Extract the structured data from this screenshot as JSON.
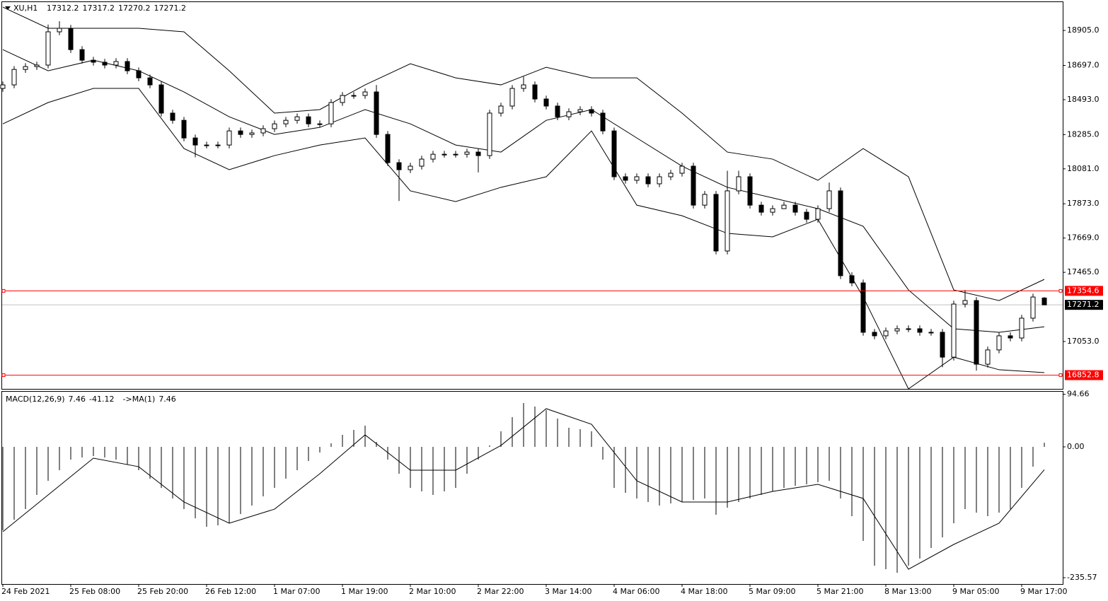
{
  "chart_data": {
    "type": "candlestick",
    "symbol": "XU,H1",
    "categories": [
      "24 Feb 2021",
      null,
      null,
      null,
      null,
      null,
      "25 Feb 08:00",
      null,
      null,
      null,
      null,
      null,
      "25 Feb 20:00",
      null,
      null,
      null,
      null,
      null,
      "26 Feb 12:00",
      null,
      null,
      null,
      null,
      null,
      "1 Mar 07:00",
      null,
      null,
      null,
      null,
      null,
      "1 Mar 19:00",
      null,
      null,
      null,
      null,
      null,
      "2 Mar 10:00",
      null,
      null,
      null,
      null,
      null,
      "2 Mar 22:00",
      null,
      null,
      null,
      null,
      null,
      "3 Mar 14:00",
      null,
      null,
      null,
      null,
      null,
      "4 Mar 06:00",
      null,
      null,
      null,
      null,
      null,
      "4 Mar 18:00",
      null,
      null,
      null,
      null,
      null,
      "5 Mar 09:00",
      null,
      null,
      null,
      null,
      null,
      "5 Mar 21:00",
      null,
      null,
      null,
      null,
      null,
      "8 Mar 13:00",
      null,
      null,
      null,
      null,
      null,
      "9 Mar 05:00",
      null,
      null,
      null,
      null,
      null,
      "9 Mar 17:00",
      null,
      null
    ],
    "open": [
      18560,
      18581,
      18673,
      18690,
      18699,
      18897,
      18918,
      18791,
      18728,
      18716,
      18699,
      18720,
      18665,
      18623,
      18581,
      18413,
      18370,
      18265,
      18223,
      18223,
      18223,
      18307,
      18286,
      18295,
      18320,
      18349,
      18370,
      18391,
      18349,
      18349,
      18476,
      18518,
      18518,
      18539,
      18286,
      18118,
      18076,
      18097,
      18139,
      18168,
      18168,
      18168,
      18181,
      18160,
      18413,
      18455,
      18560,
      18581,
      18497,
      18455,
      18391,
      18421,
      18434,
      18413,
      18307,
      18034,
      18013,
      18034,
      17992,
      18034,
      18055,
      18097,
      17865,
      17929,
      17592,
      17950,
      18034,
      17865,
      17823,
      17844,
      17865,
      17823,
      17781,
      17844,
      17950,
      17445,
      17402,
      17108,
      17087,
      17116,
      17129,
      17129,
      17108,
      17108,
      16960,
      17276,
      17297,
      16918,
      17003,
      17087,
      17074,
      17192,
      17312.2
    ],
    "high": [
      18601,
      18693,
      18710,
      18719,
      18940,
      18960,
      18938,
      18811,
      18748,
      18736,
      18740,
      18740,
      18685,
      18643,
      18601,
      18433,
      18390,
      18285,
      18243,
      18243,
      18327,
      18327,
      18315,
      18340,
      18369,
      18390,
      18411,
      18411,
      18369,
      18496,
      18538,
      18538,
      18559,
      18580,
      18306,
      18138,
      18117,
      18159,
      18188,
      18188,
      18188,
      18201,
      18201,
      18433,
      18475,
      18580,
      18630,
      18601,
      18517,
      18475,
      18441,
      18454,
      18454,
      18433,
      18327,
      18054,
      18054,
      18054,
      18054,
      18075,
      18117,
      18117,
      17949,
      17949,
      18070,
      18070,
      18054,
      17885,
      17864,
      17885,
      17885,
      17843,
      17864,
      18000,
      17970,
      17465,
      17422,
      17128,
      17136,
      17149,
      17149,
      17149,
      17128,
      17128,
      17296,
      17360,
      17317,
      17023,
      17107,
      17107,
      17212,
      17338,
      17317.2
    ],
    "low": [
      18540,
      18561,
      18653,
      18670,
      18679,
      18877,
      18771,
      18708,
      18696,
      18679,
      18679,
      18645,
      18603,
      18561,
      18393,
      18350,
      18245,
      18150,
      18203,
      18203,
      18203,
      18266,
      18266,
      18275,
      18300,
      18329,
      18350,
      18329,
      18329,
      18329,
      18456,
      18498,
      18498,
      18266,
      18098,
      17890,
      18056,
      18077,
      18119,
      18148,
      18148,
      18148,
      18060,
      18140,
      18393,
      18435,
      18540,
      18477,
      18435,
      18371,
      18371,
      18401,
      18393,
      18287,
      18014,
      17993,
      17993,
      17972,
      17972,
      18014,
      18035,
      17845,
      17845,
      17572,
      17572,
      17930,
      17845,
      17803,
      17803,
      17845,
      17803,
      17761,
      17761,
      17824,
      17425,
      17382,
      17088,
      17067,
      17067,
      17096,
      17109,
      17088,
      17088,
      16900,
      16940,
      17256,
      16880,
      16898,
      16983,
      17054,
      17054,
      17172,
      17270.2
    ],
    "close": [
      18581,
      18673,
      18690,
      18699,
      18897,
      18918,
      18791,
      18728,
      18716,
      18699,
      18720,
      18665,
      18623,
      18581,
      18413,
      18370,
      18265,
      18223,
      18223,
      18223,
      18307,
      18286,
      18295,
      18320,
      18349,
      18370,
      18391,
      18349,
      18349,
      18476,
      18518,
      18518,
      18539,
      18286,
      18118,
      18076,
      18097,
      18139,
      18168,
      18168,
      18168,
      18181,
      18160,
      18413,
      18455,
      18560,
      18581,
      18497,
      18455,
      18391,
      18421,
      18434,
      18413,
      18307,
      18034,
      18013,
      18034,
      17992,
      18034,
      18055,
      18097,
      17865,
      17929,
      17592,
      17950,
      18034,
      17865,
      17823,
      17844,
      17865,
      17823,
      17781,
      17844,
      17950,
      17445,
      17402,
      17108,
      17087,
      17116,
      17129,
      17129,
      17108,
      17108,
      16960,
      17276,
      17297,
      16918,
      17003,
      17087,
      17074,
      17192,
      17318,
      17271.2
    ],
    "up_color": "#ffffff",
    "down_color": "#000000",
    "ylim": [
      16771,
      19078
    ],
    "yticks": [
      {
        "value": 18905,
        "label": "18905.0"
      },
      {
        "value": 18697,
        "label": "18697.0"
      },
      {
        "value": 18493,
        "label": "18493.0"
      },
      {
        "value": 18285,
        "label": "18285.0"
      },
      {
        "value": 18081,
        "label": "18081.0"
      },
      {
        "value": 17873,
        "label": "17873.0"
      },
      {
        "value": 17669,
        "label": "17669.0"
      },
      {
        "value": 17465,
        "label": "17465.0"
      },
      {
        "value": 17053,
        "label": "17053.0"
      }
    ],
    "bands_x": [
      0,
      4,
      8,
      12,
      16,
      20,
      24,
      28,
      32,
      36,
      40,
      44,
      48,
      52,
      56,
      60,
      64,
      68,
      72,
      76,
      80,
      84,
      88,
      92
    ],
    "bands": [
      {
        "color": "#000000",
        "values": [
          19044,
          18918,
          18918,
          18918,
          18897,
          18665,
          18413,
          18434,
          18581,
          18707,
          18623,
          18581,
          18686,
          18623,
          18623,
          18413,
          18181,
          18139,
          18013,
          18202,
          18034,
          17360,
          17297,
          17423
        ]
      },
      {
        "color": "#000000",
        "values": [
          18791,
          18665,
          18728,
          18665,
          18539,
          18391,
          18286,
          18328,
          18434,
          18349,
          18223,
          18181,
          18370,
          18434,
          18265,
          18097,
          17971,
          17908,
          17844,
          17739,
          17360,
          17129,
          17108,
          17141
        ]
      },
      {
        "color": "#000000",
        "values": [
          18349,
          18476,
          18560,
          18560,
          18202,
          18076,
          18160,
          18223,
          18265,
          17950,
          17886,
          17971,
          18034,
          18307,
          17865,
          17802,
          17697,
          17676,
          17781,
          17318,
          16771,
          16960,
          16885,
          16868
        ]
      }
    ],
    "levels": [
      17354.6,
      16852.8
    ],
    "level_color": "#ff0000",
    "last_price": 17271.2,
    "indicator": {
      "title": "MACD(12,26,9)",
      "ma_label": "->MA(1)",
      "values": [
        -150.2,
        -131.2,
        -112.1,
        -86.6,
        -61.1,
        -42.0,
        -22.9,
        -19.1,
        -16.6,
        -19.1,
        -22.9,
        -31.8,
        -42.0,
        -57.3,
        -73.9,
        -92.9,
        -112.1,
        -128.6,
        -143.9,
        -141.3,
        -137.5,
        -121.0,
        -105.7,
        -89.1,
        -73.9,
        -57.3,
        -42.0,
        -25.5,
        -10.2,
        6.4,
        21.6,
        30.6,
        38.2,
        8.9,
        -22.9,
        -48.4,
        -73.9,
        -80.2,
        -86.6,
        -80.2,
        -73.9,
        -48.4,
        -22.9,
        2.5,
        28.0,
        53.5,
        78.9,
        72.6,
        66.2,
        50.9,
        34.4,
        31.8,
        28.0,
        -22.9,
        -73.9,
        -82.8,
        -92.9,
        -99.3,
        -105.7,
        -101.9,
        -99.3,
        -95.5,
        -92.9,
        -122.2,
        -109.5,
        -99.3,
        -92.9,
        -86.6,
        -80.2,
        -73.9,
        -70.0,
        -67.5,
        -63.7,
        -61.1,
        -92.9,
        -124.8,
        -169.3,
        -213.9,
        -220.3,
        -226.6,
        -213.9,
        -201.2,
        -182.1,
        -163.0,
        -137.5,
        -112.1,
        -118.4,
        -124.8,
        -118.4,
        -112.1,
        -73.9,
        -35.7,
        7.46
      ],
      "signal_x": [
        0,
        4,
        8,
        12,
        16,
        20,
        24,
        28,
        32,
        36,
        40,
        44,
        48,
        52,
        56,
        60,
        64,
        68,
        72,
        76,
        80,
        84,
        88,
        92
      ],
      "signal": [
        -152.8,
        -86.6,
        -20.4,
        -35.7,
        -99.3,
        -137.5,
        -112.1,
        -48.4,
        21.6,
        -42.0,
        -42.0,
        2.5,
        68.8,
        40.7,
        -61.1,
        -99.3,
        -99.3,
        -80.2,
        -67.5,
        -92.9,
        -220.3,
        -175.7,
        -137.5,
        -41.12
      ],
      "ylim": [
        -247,
        100.6
      ],
      "yticks": [
        94.66,
        {
          "value": 0,
          "label": "0.00"
        },
        -235.57
      ]
    }
  }
}
